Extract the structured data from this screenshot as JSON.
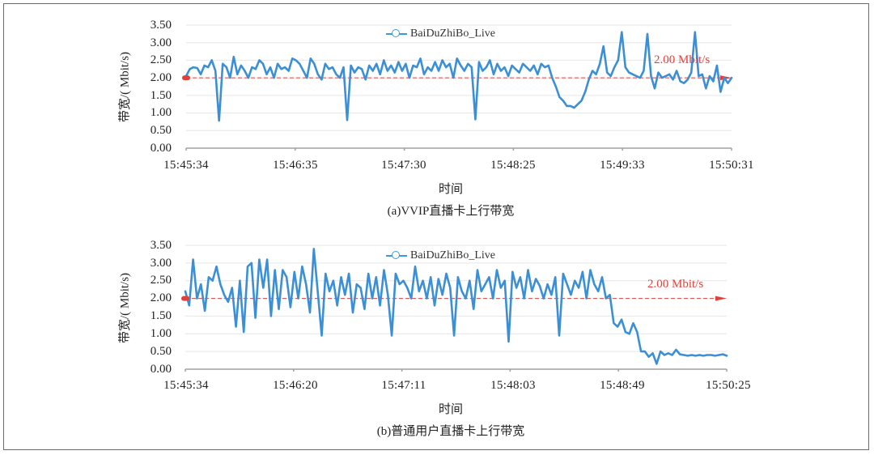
{
  "figure": {
    "border_color": "#6b6b6b"
  },
  "chart_data": [
    {
      "type": "line",
      "caption": "(a)VVIP直播卡上行带宽",
      "title": "",
      "xlabel": "时间",
      "ylabel": "带宽/( Mbit/s)",
      "ylim": [
        0,
        3.5
      ],
      "yticks": [
        "0.00",
        "0.50",
        "1.00",
        "1.50",
        "2.00",
        "2.50",
        "3.00",
        "3.50"
      ],
      "xticks": [
        "15:45:34",
        "15:46:35",
        "15:47:30",
        "15:48:25",
        "15:49:33",
        "15:50:31"
      ],
      "grid": true,
      "legend": {
        "position": "top-center",
        "entries": [
          "BaiDuZhiBo_Live"
        ]
      },
      "reference_line": {
        "value": 2.0,
        "label": "2.00 Mbit/s",
        "color": "#e2413b",
        "style": "dashed-arrow"
      },
      "series": [
        {
          "name": "BaiDuZhiBo_Live",
          "color": "#3b8fd6",
          "values": [
            2.05,
            2.25,
            2.3,
            2.28,
            2.1,
            2.35,
            2.3,
            2.5,
            2.2,
            0.78,
            2.4,
            2.3,
            2.0,
            2.6,
            2.1,
            2.35,
            2.2,
            2.0,
            2.3,
            2.25,
            2.5,
            2.4,
            2.1,
            2.3,
            2.0,
            2.4,
            2.25,
            2.3,
            2.2,
            2.55,
            2.5,
            2.4,
            2.2,
            2.0,
            2.55,
            2.4,
            2.1,
            1.95,
            2.4,
            2.25,
            2.3,
            2.1,
            2.0,
            2.3,
            0.8,
            2.35,
            2.15,
            2.3,
            2.25,
            1.95,
            2.35,
            2.2,
            2.4,
            2.1,
            2.5,
            2.2,
            2.35,
            2.15,
            2.45,
            2.2,
            2.4,
            2.0,
            2.35,
            2.3,
            2.55,
            2.1,
            2.3,
            2.2,
            2.45,
            2.2,
            2.5,
            2.3,
            2.4,
            2.0,
            2.55,
            2.35,
            2.2,
            2.4,
            2.3,
            0.82,
            2.45,
            2.2,
            2.3,
            2.5,
            2.1,
            2.4,
            2.2,
            2.3,
            2.05,
            2.35,
            2.25,
            2.15,
            2.4,
            2.3,
            2.2,
            2.35,
            2.1,
            2.4,
            2.3,
            2.35,
            2.0,
            1.75,
            1.45,
            1.35,
            1.2,
            1.2,
            1.15,
            1.25,
            1.35,
            1.6,
            1.95,
            2.2,
            2.1,
            2.4,
            2.9,
            2.15,
            2.05,
            2.3,
            2.5,
            3.3,
            2.3,
            2.15,
            2.1,
            2.05,
            2.0,
            2.2,
            3.25,
            2.05,
            1.7,
            2.15,
            2.0,
            2.05,
            2.1,
            1.95,
            2.2,
            1.9,
            1.85,
            1.95,
            2.15,
            3.3,
            2.05,
            2.1,
            1.7,
            2.05,
            1.9,
            2.35,
            1.6,
            2.0,
            1.85,
            2.0
          ]
        }
      ]
    },
    {
      "type": "line",
      "caption": "(b)普通用户直播卡上行带宽",
      "title": "",
      "xlabel": "时间",
      "ylabel": "带宽/( Mbit/s)",
      "ylim": [
        0,
        3.5
      ],
      "yticks": [
        "0.00",
        "0.50",
        "1.00",
        "1.50",
        "2.00",
        "2.50",
        "3.00",
        "3.50"
      ],
      "xticks": [
        "15:45:34",
        "15:46:20",
        "15:47:11",
        "15:48:03",
        "15:48:49",
        "15:50:25"
      ],
      "grid": true,
      "legend": {
        "position": "top-center",
        "entries": [
          "BaiDuZhiBo_Live"
        ]
      },
      "reference_line": {
        "value": 2.0,
        "label": "2.00 Mbit/s",
        "color": "#e2413b",
        "style": "dashed-arrow"
      },
      "series": [
        {
          "name": "BaiDuZhiBo_Live",
          "color": "#3b8fd6",
          "values": [
            2.2,
            1.8,
            3.1,
            2.0,
            2.4,
            1.65,
            2.6,
            2.5,
            2.9,
            2.4,
            2.1,
            1.9,
            2.3,
            1.2,
            2.5,
            1.05,
            2.9,
            3.0,
            1.45,
            3.1,
            2.3,
            3.1,
            1.5,
            2.8,
            1.7,
            2.8,
            2.6,
            1.75,
            2.75,
            2.0,
            2.9,
            2.4,
            1.6,
            3.4,
            2.2,
            0.95,
            2.7,
            2.2,
            2.5,
            1.8,
            2.6,
            2.1,
            2.7,
            1.6,
            2.4,
            2.3,
            1.7,
            2.7,
            2.0,
            2.6,
            1.8,
            2.8,
            2.1,
            0.95,
            2.7,
            2.4,
            2.5,
            2.3,
            2.0,
            2.9,
            2.2,
            2.5,
            2.0,
            2.6,
            1.8,
            2.55,
            2.1,
            2.7,
            2.3,
            0.95,
            2.6,
            2.2,
            2.0,
            2.5,
            1.7,
            2.8,
            2.2,
            2.4,
            2.6,
            2.0,
            2.8,
            2.3,
            2.5,
            0.78,
            2.75,
            2.3,
            2.6,
            2.0,
            2.8,
            2.2,
            2.55,
            2.35,
            2.0,
            2.4,
            2.1,
            2.6,
            0.95,
            2.7,
            2.4,
            2.1,
            2.5,
            2.3,
            2.75,
            2.0,
            2.8,
            2.4,
            2.2,
            2.6,
            2.0,
            2.1,
            1.3,
            1.2,
            1.4,
            1.05,
            1.0,
            1.3,
            1.05,
            0.5,
            0.5,
            0.35,
            0.45,
            0.15,
            0.5,
            0.4,
            0.45,
            0.4,
            0.55,
            0.42,
            0.4,
            0.38,
            0.4,
            0.38,
            0.4,
            0.38,
            0.4,
            0.4,
            0.38,
            0.4,
            0.42,
            0.38
          ]
        }
      ]
    }
  ],
  "charts": {
    "a": {
      "legend_label": "BaiDuZhiBo_Live",
      "ref_label": "2.00 Mbit/s",
      "ylabel": "带宽/( Mbit/s)",
      "xlabel": "时间",
      "caption": "(a)VVIP直播卡上行带宽",
      "yticks": {
        "t0": "0.00",
        "t1": "0.50",
        "t2": "1.00",
        "t3": "1.50",
        "t4": "2.00",
        "t5": "2.50",
        "t6": "3.00",
        "t7": "3.50"
      },
      "xticks": {
        "t0": "15:45:34",
        "t1": "15:46:35",
        "t2": "15:47:30",
        "t3": "15:48:25",
        "t4": "15:49:33",
        "t5": "15:50:31"
      }
    },
    "b": {
      "legend_label": "BaiDuZhiBo_Live",
      "ref_label": "2.00 Mbit/s",
      "ylabel": "带宽/( Mbit/s)",
      "xlabel": "时间",
      "caption": "(b)普通用户直播卡上行带宽",
      "yticks": {
        "t0": "0.00",
        "t1": "0.50",
        "t2": "1.00",
        "t3": "1.50",
        "t4": "2.00",
        "t5": "2.50",
        "t6": "3.00",
        "t7": "3.50"
      },
      "xticks": {
        "t0": "15:45:34",
        "t1": "15:46:20",
        "t2": "15:47:11",
        "t3": "15:48:03",
        "t4": "15:48:49",
        "t5": "15:50:25"
      }
    }
  },
  "colors": {
    "line": "#3b8fd6",
    "reference": "#e2413b",
    "grid": "#e6e6e6",
    "axis": "#a0a0a0",
    "legend_marker": "#3b9ad9"
  }
}
